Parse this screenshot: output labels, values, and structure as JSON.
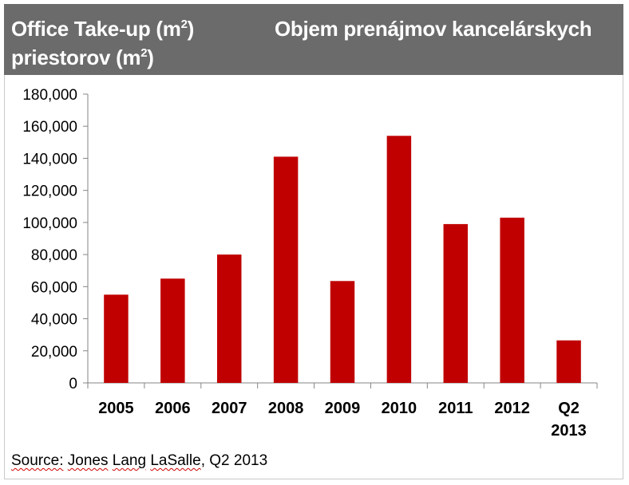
{
  "header": {
    "title_en": "Office Take-up (m",
    "title_en_sup": "2",
    "title_en_close": ")",
    "title_sk_line1": "Objem prenájmov kancelárskych",
    "title_sk_line2": "priestorov (m",
    "title_sk_sup": "2",
    "title_sk_close": ")"
  },
  "chart_data": {
    "type": "bar",
    "title": "Office Take-up (m2) / Objem prenájmov kancelárskych priestorov (m2)",
    "categories": [
      "2005",
      "2006",
      "2007",
      "2008",
      "2009",
      "2010",
      "2011",
      "2012",
      "Q2 2013"
    ],
    "category_lines": [
      [
        "2005"
      ],
      [
        "2006"
      ],
      [
        "2007"
      ],
      [
        "2008"
      ],
      [
        "2009"
      ],
      [
        "2010"
      ],
      [
        "2011"
      ],
      [
        "2012"
      ],
      [
        "Q2",
        "2013"
      ]
    ],
    "values": [
      55000,
      65000,
      80000,
      141000,
      63500,
      154000,
      99000,
      103000,
      26500
    ],
    "ylim": [
      0,
      180000
    ],
    "yticks": [
      0,
      20000,
      40000,
      60000,
      80000,
      100000,
      120000,
      140000,
      160000,
      180000
    ],
    "ytick_labels": [
      "0",
      "20,000",
      "40,000",
      "60,000",
      "80,000",
      "100,000",
      "120,000",
      "140,000",
      "160,000",
      "180,000"
    ],
    "xlabel": "",
    "ylabel": "",
    "grid": false,
    "bar_color": "#c00000"
  },
  "source": {
    "word": "Source:",
    "text_a": " ",
    "name1": "Jones",
    "text_b": " ",
    "name2": "Lang",
    "text_c": " ",
    "name3": "LaSalle",
    "text_d": ", Q2 2013"
  }
}
